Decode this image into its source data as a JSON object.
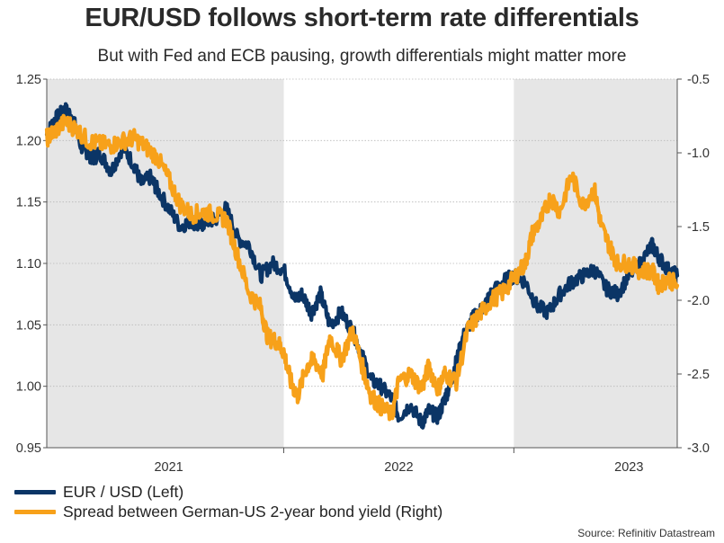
{
  "header": {
    "title": "EUR/USD follows short-term rate differentials",
    "subtitle": "But with Fed and ECB pausing, growth differentials might matter more"
  },
  "source": "Source: Refinitiv Datastream",
  "colors": {
    "eurusd": "#0b3566",
    "spread": "#f7a11a",
    "shade": "#e6e6e6",
    "grid": "#b9b9b9",
    "axis": "#555555"
  },
  "chart_data": {
    "type": "line",
    "title": "EUR/USD follows short-term rate differentials",
    "x_range": [
      2020.97,
      2023.71
    ],
    "x_ticks": [
      {
        "label": "2021",
        "pos": 2021.5
      },
      {
        "label": "2022",
        "pos": 2022.5
      },
      {
        "label": "2023",
        "pos": 2023.5
      }
    ],
    "year_boundaries": [
      2022.0,
      2023.0
    ],
    "shaded_periods": [
      [
        2020.97,
        2022.0
      ],
      [
        2023.0,
        2023.71
      ]
    ],
    "y_left": {
      "min": 0.95,
      "max": 1.25,
      "ticks": [
        "0.95",
        "1.00",
        "1.05",
        "1.10",
        "1.15",
        "1.20",
        "1.25"
      ]
    },
    "y_right": {
      "min": -3.0,
      "max": -0.5,
      "ticks": [
        "-3.0",
        "-2.5",
        "-2.0",
        "-1.5",
        "-1.0",
        "-0.5"
      ]
    },
    "grid": true,
    "series": [
      {
        "name": "EUR / USD (Left)",
        "axis": "left",
        "t": [
          2020.97,
          2021.0,
          2021.02,
          2021.05,
          2021.08,
          2021.12,
          2021.15,
          2021.17,
          2021.2,
          2021.25,
          2021.3,
          2021.35,
          2021.38,
          2021.42,
          2021.45,
          2021.5,
          2021.55,
          2021.6,
          2021.63,
          2021.67,
          2021.7,
          2021.75,
          2021.8,
          2021.85,
          2021.9,
          2021.95,
          2022.0,
          2022.05,
          2022.08,
          2022.12,
          2022.16,
          2022.2,
          2022.25,
          2022.3,
          2022.33,
          2022.38,
          2022.42,
          2022.47,
          2022.5,
          2022.55,
          2022.6,
          2022.63,
          2022.67,
          2022.7,
          2022.72,
          2022.75,
          2022.78,
          2022.82,
          2022.87,
          2022.9,
          2022.95,
          2023.0,
          2023.05,
          2023.1,
          2023.15,
          2023.2,
          2023.25,
          2023.3,
          2023.35,
          2023.4,
          2023.45,
          2023.5,
          2023.55,
          2023.6,
          2023.63,
          2023.67,
          2023.71
        ],
        "values": [
          1.205,
          1.215,
          1.22,
          1.225,
          1.22,
          1.195,
          1.19,
          1.185,
          1.19,
          1.175,
          1.195,
          1.18,
          1.165,
          1.17,
          1.16,
          1.145,
          1.13,
          1.135,
          1.13,
          1.135,
          1.135,
          1.145,
          1.12,
          1.115,
          1.09,
          1.1,
          1.095,
          1.07,
          1.075,
          1.06,
          1.075,
          1.05,
          1.06,
          1.045,
          1.03,
          1.005,
          1.0,
          0.99,
          0.975,
          0.985,
          0.97,
          0.98,
          0.975,
          0.99,
          1.0,
          1.02,
          1.04,
          1.055,
          1.065,
          1.075,
          1.085,
          1.09,
          1.085,
          1.065,
          1.06,
          1.075,
          1.085,
          1.09,
          1.095,
          1.08,
          1.075,
          1.09,
          1.1,
          1.115,
          1.105,
          1.095,
          1.09
        ]
      },
      {
        "name": "Spread between German-US 2-year bond yield (Right)",
        "axis": "right",
        "t": [
          2020.97,
          2021.0,
          2021.05,
          2021.1,
          2021.15,
          2021.2,
          2021.25,
          2021.3,
          2021.35,
          2021.4,
          2021.45,
          2021.5,
          2021.55,
          2021.6,
          2021.65,
          2021.7,
          2021.75,
          2021.8,
          2021.85,
          2021.9,
          2021.93,
          2021.97,
          2022.0,
          2022.03,
          2022.06,
          2022.1,
          2022.13,
          2022.17,
          2022.2,
          2022.25,
          2022.3,
          2022.35,
          2022.38,
          2022.42,
          2022.47,
          2022.5,
          2022.55,
          2022.6,
          2022.63,
          2022.67,
          2022.7,
          2022.75,
          2022.8,
          2022.85,
          2022.9,
          2022.95,
          2023.0,
          2023.05,
          2023.08,
          2023.12,
          2023.16,
          2023.2,
          2023.25,
          2023.3,
          2023.35,
          2023.38,
          2023.42,
          2023.45,
          2023.5,
          2023.55,
          2023.6,
          2023.63,
          2023.67,
          2023.71
        ],
        "values": [
          -0.9,
          -0.86,
          -0.79,
          -0.84,
          -0.92,
          -0.94,
          -0.95,
          -0.92,
          -0.9,
          -0.96,
          -1.03,
          -1.18,
          -1.35,
          -1.42,
          -1.4,
          -1.42,
          -1.45,
          -1.7,
          -1.95,
          -2.05,
          -2.25,
          -2.28,
          -2.35,
          -2.55,
          -2.65,
          -2.45,
          -2.4,
          -2.5,
          -2.25,
          -2.4,
          -2.2,
          -2.5,
          -2.65,
          -2.72,
          -2.78,
          -2.55,
          -2.5,
          -2.6,
          -2.45,
          -2.6,
          -2.5,
          -2.55,
          -2.2,
          -2.1,
          -2.0,
          -1.95,
          -1.85,
          -1.75,
          -1.55,
          -1.45,
          -1.3,
          -1.4,
          -1.15,
          -1.35,
          -1.25,
          -1.5,
          -1.65,
          -1.75,
          -1.75,
          -1.8,
          -1.8,
          -1.9,
          -1.85,
          -1.9
        ]
      }
    ]
  },
  "legend": [
    {
      "label": "EUR / USD (Left)",
      "color": "#0b3566"
    },
    {
      "label": "Spread between German-US 2-year bond yield (Right)",
      "color": "#f7a11a"
    }
  ]
}
